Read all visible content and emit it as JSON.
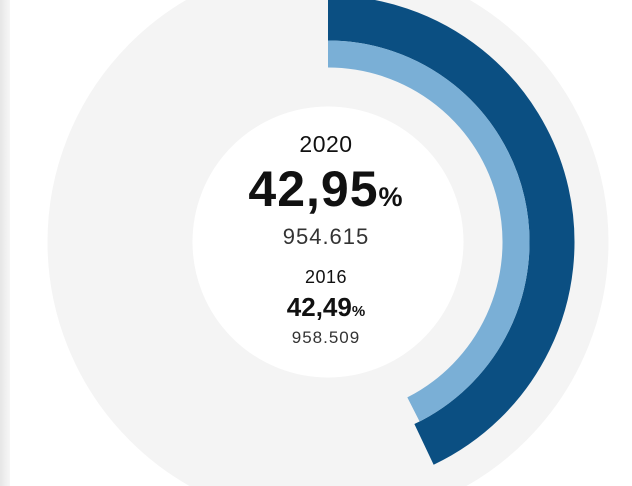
{
  "chart_data": {
    "type": "pie",
    "series": [
      {
        "year": "2020",
        "percent_value": 42.95,
        "percent": "42,95",
        "votes": "954.615",
        "color": "#0b4f82"
      },
      {
        "year": "2016",
        "percent_value": 42.49,
        "percent": "42,49",
        "votes": "958.509",
        "color": "#7aafd6"
      }
    ],
    "unit": "%",
    "track_color": "#f4f4f4"
  }
}
